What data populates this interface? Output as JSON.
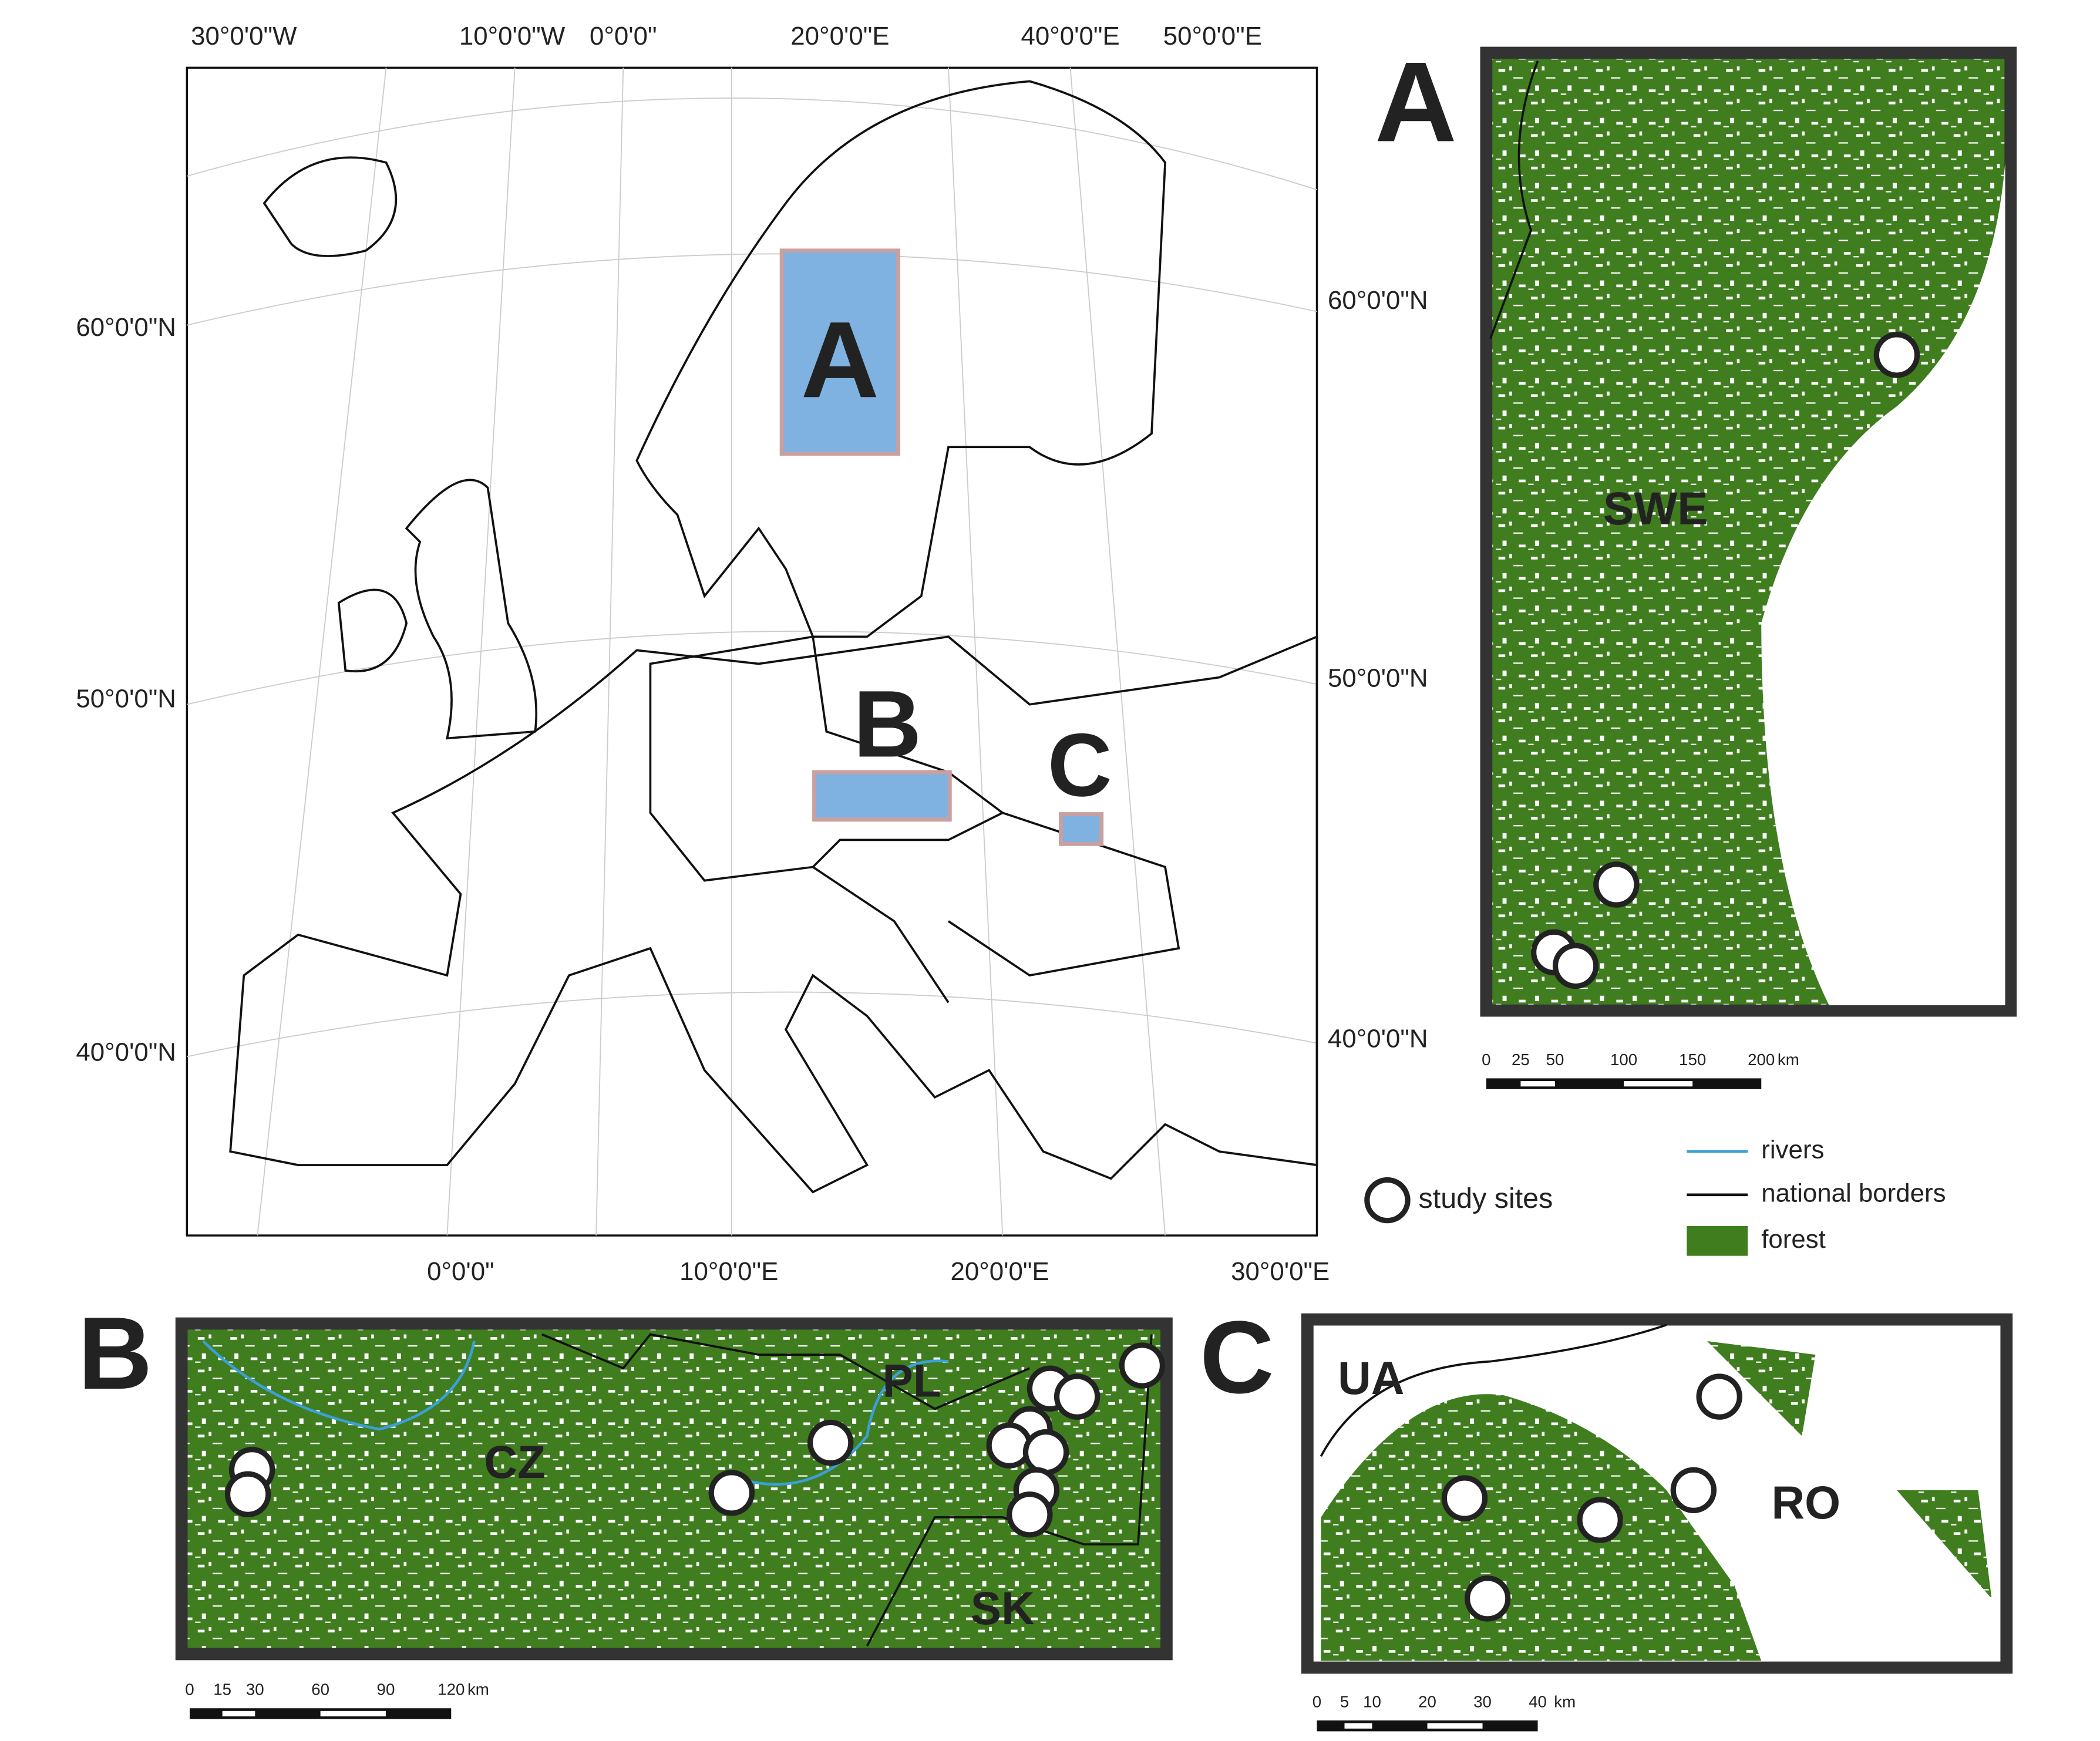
{
  "main_map": {
    "top_labels": [
      "30°0'0\"W",
      "10°0'0\"W",
      "0°0'0\"",
      "20°0'0\"E",
      "40°0'0\"E",
      "50°0'0\"E"
    ],
    "bottom_labels": [
      "0°0'0\"",
      "10°0'0\"E",
      "20°0'0\"E",
      "30°0'0\"E"
    ],
    "left_labels": [
      "60°0'0\"N",
      "50°0'0\"N",
      "40°0'0\"N"
    ],
    "right_labels": [
      "60°0'0\"N",
      "50°0'0\"N",
      "40°0'0\"N"
    ],
    "boxes": [
      "A",
      "B",
      "C"
    ]
  },
  "panel_a": {
    "letter": "A",
    "regions": [
      "SWE"
    ],
    "scale": {
      "ticks": [
        0,
        25,
        50,
        100,
        150,
        200
      ],
      "unit": "km"
    }
  },
  "panel_b": {
    "letter": "B",
    "regions": [
      "CZ",
      "PL",
      "SK"
    ],
    "scale": {
      "ticks": [
        0,
        15,
        30,
        60,
        90,
        120
      ],
      "unit": "km"
    }
  },
  "panel_c": {
    "letter": "C",
    "regions": [
      "UA",
      "RO"
    ],
    "scale": {
      "ticks": [
        0,
        5,
        10,
        20,
        30,
        40
      ],
      "unit": "km"
    }
  },
  "legend": {
    "study_sites": "study sites",
    "rivers": "rivers",
    "borders": "national borders",
    "forest": "forest"
  }
}
